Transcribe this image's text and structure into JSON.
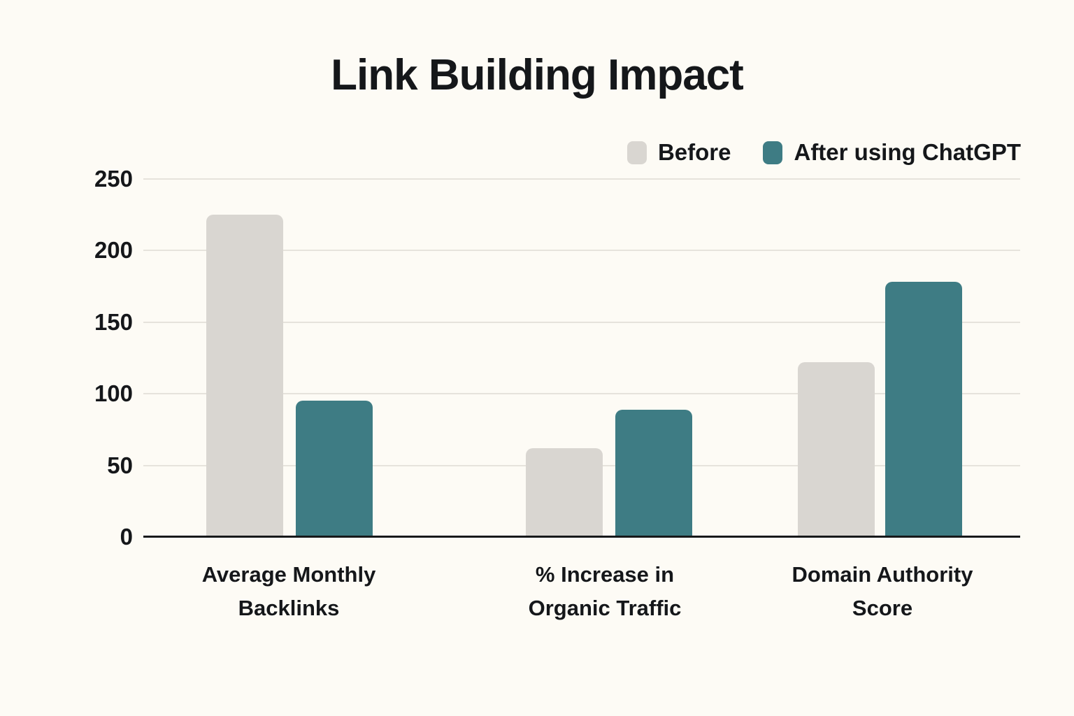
{
  "colors": {
    "background": "#FDFBF5",
    "text": "#15171A",
    "gridline": "#E6E3DC",
    "axis": "#17191B"
  },
  "chart_data": {
    "type": "bar",
    "title": "Link Building Impact",
    "categories": [
      "Average Monthly Backlinks",
      "% Increase in Organic Traffic",
      "Domain Authority Score"
    ],
    "series": [
      {
        "name": "Before",
        "color": "#D9D6D1",
        "values": [
          225,
          62,
          122
        ]
      },
      {
        "name": "After using ChatGPT",
        "color": "#3E7C84",
        "values": [
          95,
          89,
          178
        ]
      }
    ],
    "xlabel": "",
    "ylabel": "",
    "ylim": [
      0,
      250
    ],
    "yticks": [
      0,
      50,
      100,
      150,
      200,
      250
    ],
    "grid": true,
    "legend_position": "top-right"
  }
}
